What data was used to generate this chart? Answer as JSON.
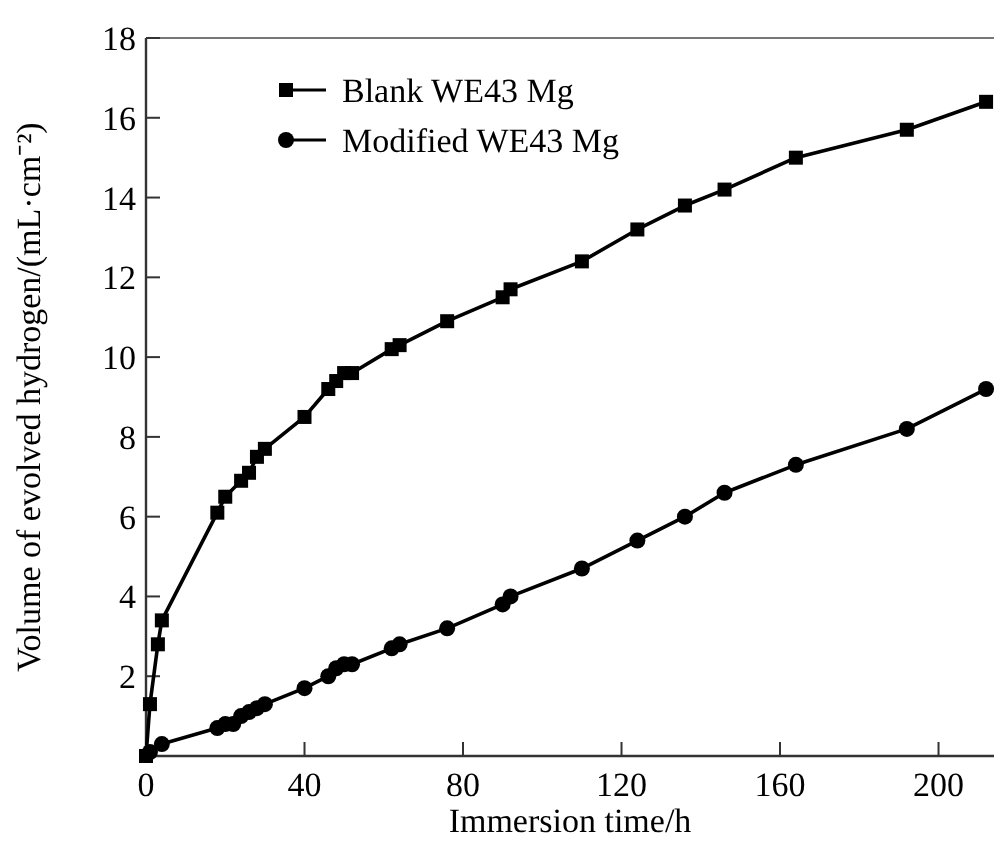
{
  "chart_data": {
    "type": "line",
    "xlabel": "Immersion time/h",
    "ylabel": "Volume of evolved hydrogen/(mL·cm⁻²)",
    "xlim": [
      0,
      214
    ],
    "xticks": [
      0,
      40,
      80,
      120,
      160,
      200
    ],
    "ylim": [
      0,
      18
    ],
    "yticks": [
      {
        "value": 0,
        "label": null
      },
      2,
      4,
      6,
      8,
      10,
      12,
      14,
      16,
      18
    ],
    "legend": "top left",
    "line_style": "solid",
    "series": [
      {
        "name": "Blank WE43 Mg",
        "color": "#000000",
        "marker": "square",
        "x": [
          0,
          1,
          3,
          4,
          18,
          20,
          24,
          26,
          28,
          30,
          40,
          46,
          48,
          50,
          52,
          62,
          64,
          76,
          90,
          92,
          110,
          124,
          136,
          146,
          164,
          192,
          212
        ],
        "values": [
          0,
          1.3,
          2.8,
          3.4,
          6.1,
          6.5,
          6.9,
          7.1,
          7.5,
          7.7,
          8.5,
          9.2,
          9.4,
          9.6,
          9.6,
          10.2,
          10.3,
          10.9,
          11.5,
          11.7,
          12.4,
          13.2,
          13.8,
          14.2,
          15.0,
          15.7,
          16.4
        ]
      },
      {
        "name": "Modified WE43 Mg",
        "color": "#000000",
        "marker": "circle",
        "x": [
          1,
          4,
          18,
          20,
          22,
          24,
          26,
          28,
          30,
          40,
          46,
          48,
          50,
          52,
          62,
          64,
          76,
          90,
          92,
          110,
          124,
          136,
          146,
          164,
          192,
          212
        ],
        "values": [
          0.1,
          0.3,
          0.7,
          0.8,
          0.8,
          1.0,
          1.1,
          1.2,
          1.3,
          1.7,
          2.0,
          2.2,
          2.3,
          2.3,
          2.7,
          2.8,
          3.2,
          3.8,
          4.0,
          4.7,
          5.4,
          6.0,
          6.6,
          7.3,
          8.2,
          9.2
        ]
      }
    ]
  }
}
